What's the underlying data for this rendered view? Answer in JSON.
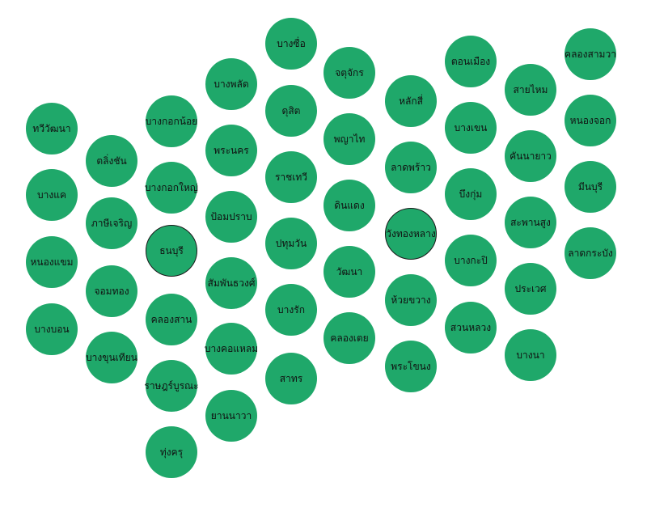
{
  "colors": {
    "bubble": "#1fa86a",
    "text": "#111111",
    "highlight_border": "#1a1a1a",
    "background": "#ffffff"
  },
  "districts": [
    "บางซื่อ",
    "จตุจักร",
    "ตอนเมือง",
    "คลองสามวา",
    "บางพลัด",
    "ดุสิต",
    "พญาไท",
    "หลักสี่",
    "บางเขน",
    "สายไหม",
    "หนองจอก",
    "ทวีวัฒนา",
    "บางกอกน้อย",
    "พระนคร",
    "ลาดพร้าว",
    "บึงกุ่ม",
    "คันนายาว",
    "มีนบุรี",
    "ตลิ่งชัน",
    "บางกอกใหญ่",
    "ราชเทวี",
    "ดินแดง",
    "บางแค",
    "ภาษีเจริญ",
    "ป้อมปราบ",
    "วังทองหลาง",
    "สะพานสูง",
    "ธนบุรี",
    "ปทุมวัน",
    "ลาดกระบัง",
    "หนองแขม",
    "สัมพันธวงศ์",
    "วัฒนา",
    "บางกะปิ",
    "จอมทอง",
    "คลองสาน",
    "บางรัก",
    "ห้วยขวาง",
    "ประเวศ",
    "บางบอน",
    "บางขุนเทียน",
    "บางคอแหลม",
    "คลองเตย",
    "สวนหลวง",
    "บางนา",
    "พระโขนง",
    "ราษฎร์บูรณะ",
    "สาทร",
    "ยานนาวา",
    "ทุ่งครุ"
  ]
}
